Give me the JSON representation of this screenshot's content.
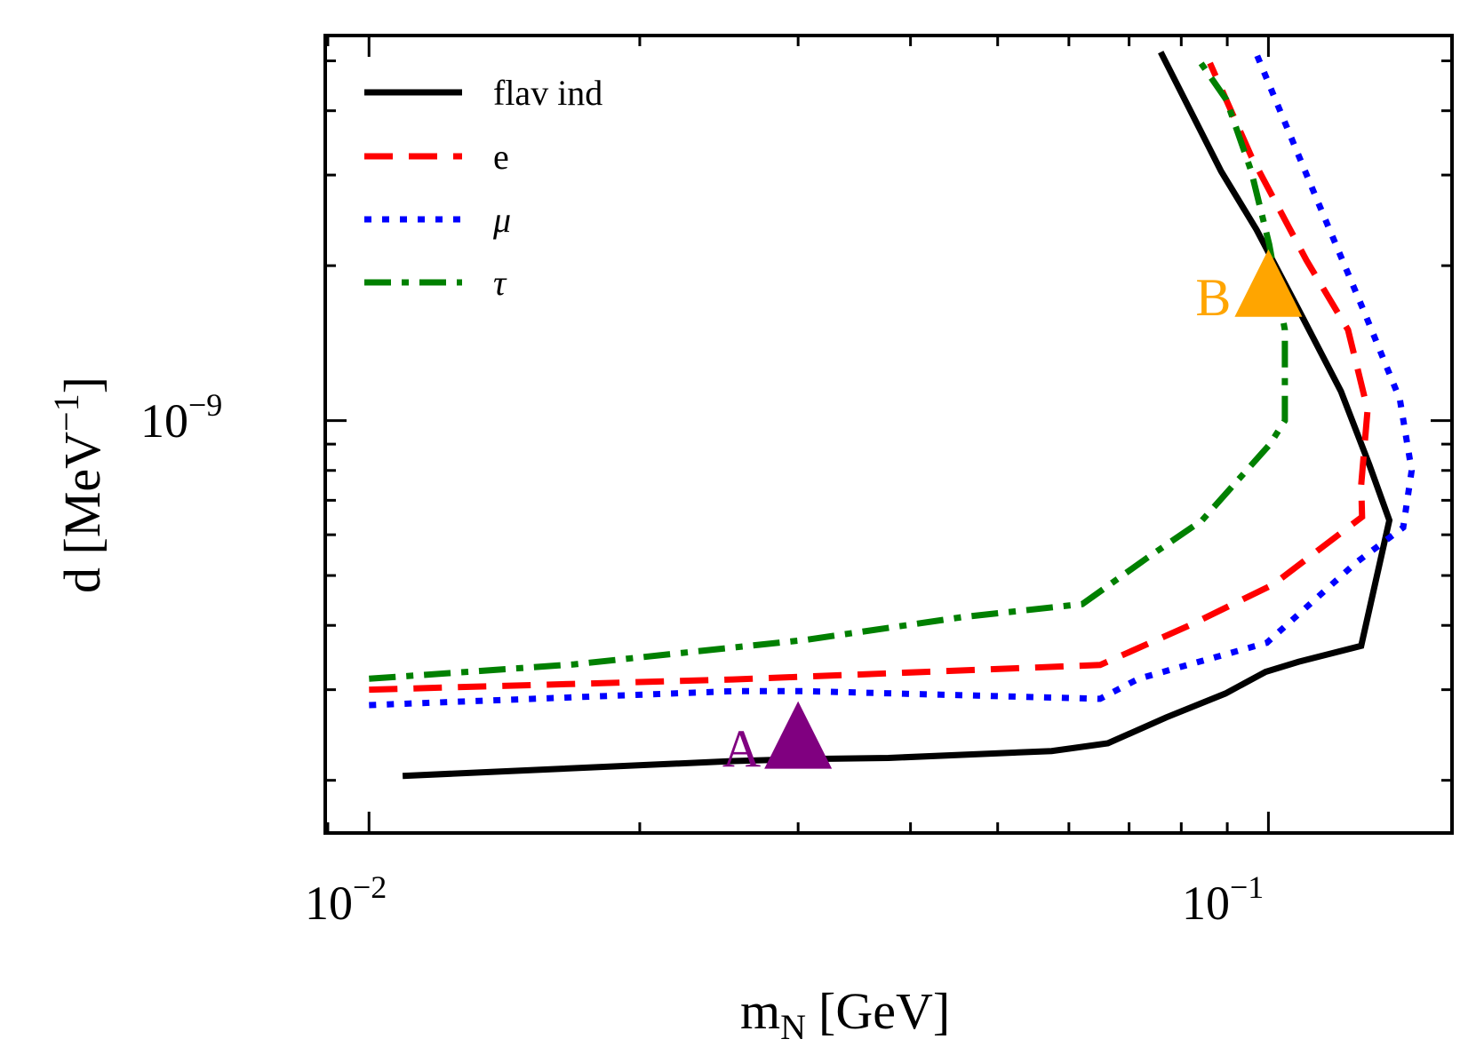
{
  "chart_data": {
    "type": "line",
    "xlabel": "m",
    "xlabel_sub": "N",
    "xlabel_unit": "[GeV]",
    "ylabel": "d [MeV",
    "ylabel_sup": "−1",
    "ylabel_close": "]",
    "xscale": "log",
    "yscale": "log",
    "xlim": [
      0.00894,
      0.16
    ],
    "ylim": [
      1.58e-10,
      5.6e-09
    ],
    "grid": false,
    "legend_position": "top-left",
    "x_tick_labels": [
      {
        "value": 0.01,
        "base": "10",
        "exp": "−2"
      },
      {
        "value": 0.1,
        "base": "10",
        "exp": "−1"
      }
    ],
    "y_tick_labels": [
      {
        "value": 1e-09,
        "base": "10",
        "exp": "−9"
      }
    ],
    "series": [
      {
        "name": "flav ind",
        "color": "#000000",
        "style": "solid",
        "x": [
          0.0109,
          0.0254,
          0.0305,
          0.0378,
          0.0574,
          0.0663,
          0.077,
          0.0896,
          0.0993,
          0.1081,
          0.1268,
          0.1363,
          0.1295,
          0.1204,
          0.1079,
          0.097,
          0.0886,
          0.0759
        ],
        "y": [
          2.04e-10,
          2.18e-10,
          2.2e-10,
          2.21e-10,
          2.28e-10,
          2.36e-10,
          2.65e-10,
          2.95e-10,
          3.25e-10,
          3.4e-10,
          3.65e-10,
          6.4e-10,
          8.2e-10,
          1.14e-09,
          1.65e-09,
          2.35e-09,
          3.05e-09,
          5.2e-09
        ]
      },
      {
        "name": "e",
        "color": "#ff0000",
        "style": "dashed",
        "x": [
          0.01,
          0.0254,
          0.065,
          0.0817,
          0.1012,
          0.1271,
          0.1268,
          0.1289,
          0.1226,
          0.1102,
          0.0958,
          0.0861
        ],
        "y": [
          3e-10,
          3.14e-10,
          3.35e-10,
          4e-10,
          4.8e-10,
          6.5e-10,
          7.5e-10,
          1.05e-09,
          1.5e-09,
          2.05e-09,
          3.25e-09,
          4.95e-09
        ]
      },
      {
        "name": "μ",
        "color": "#0000ff",
        "style": "dotted",
        "x": [
          0.01,
          0.0254,
          0.0306,
          0.065,
          0.0717,
          0.0996,
          0.1252,
          0.1412,
          0.1443,
          0.14,
          0.1283,
          0.1126,
          0.0968
        ],
        "y": [
          2.8e-10,
          2.98e-10,
          2.98e-10,
          2.88e-10,
          3.15e-10,
          3.7e-10,
          5.3e-10,
          6.2e-10,
          8e-10,
          1.1e-09,
          1.6e-09,
          2.75e-09,
          5.2e-09
        ]
      },
      {
        "name": "τ",
        "color": "#008000",
        "style": "dashdot",
        "x": [
          0.01,
          0.0169,
          0.0306,
          0.0456,
          0.0621,
          0.0732,
          0.0844,
          0.1004,
          0.1043,
          0.1043,
          0.1002,
          0.0957,
          0.0898,
          0.0838
        ],
        "y": [
          3.15e-10,
          3.36e-10,
          3.75e-10,
          4.15e-10,
          4.4e-10,
          5.4e-10,
          6.4e-10,
          9e-10,
          1e-09,
          1.5e-09,
          2.2e-09,
          3.05e-09,
          4.2e-09,
          5e-09
        ]
      }
    ],
    "markers": [
      {
        "label": "A",
        "x": 0.03,
        "y": 2.45e-10,
        "color": "#800080"
      },
      {
        "label": "B",
        "x": 0.1,
        "y": 1.85e-09,
        "color": "#ffa500"
      }
    ]
  }
}
